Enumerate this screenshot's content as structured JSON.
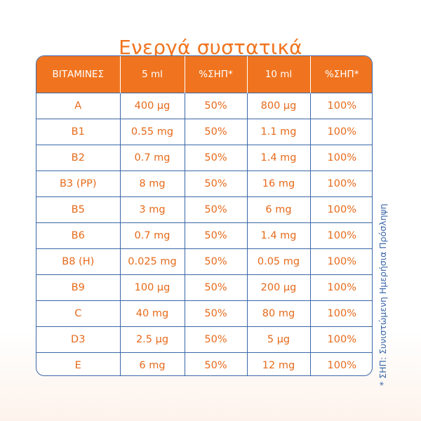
{
  "title": "Ενεργά συστατικά",
  "colors": {
    "accent": "#f0741f",
    "border": "#3b67a8",
    "text_orange": "#e66a1a"
  },
  "table": {
    "headers": [
      "ΒΙΤΑΜΙΝΕΣ",
      "5 ml",
      "%ΣΗΠ*",
      "10 ml",
      "%ΣΗΠ*"
    ],
    "rows": [
      [
        "A",
        "400 μg",
        "50%",
        "800 μg",
        "100%"
      ],
      [
        "B1",
        "0.55 mg",
        "50%",
        "1.1 mg",
        "100%"
      ],
      [
        "B2",
        "0.7 mg",
        "50%",
        "1.4 mg",
        "100%"
      ],
      [
        "B3 (PP)",
        "8 mg",
        "50%",
        "16 mg",
        "100%"
      ],
      [
        "B5",
        "3 mg",
        "50%",
        "6 mg",
        "100%"
      ],
      [
        "B6",
        "0.7 mg",
        "50%",
        "1.4 mg",
        "100%"
      ],
      [
        "B8 (H)",
        "0.025 mg",
        "50%",
        "0.05 mg",
        "100%"
      ],
      [
        "B9",
        "100 μg",
        "50%",
        "200 μg",
        "100%"
      ],
      [
        "C",
        "40 mg",
        "50%",
        "80 mg",
        "100%"
      ],
      [
        "D3",
        "2.5 μg",
        "50%",
        "5 μg",
        "100%"
      ],
      [
        "E",
        "6 mg",
        "50%",
        "12 mg",
        "100%"
      ]
    ]
  },
  "footnote": "* ΣΗΠ: Συνιστώμενη Ημερήσια Πρόσληψη"
}
